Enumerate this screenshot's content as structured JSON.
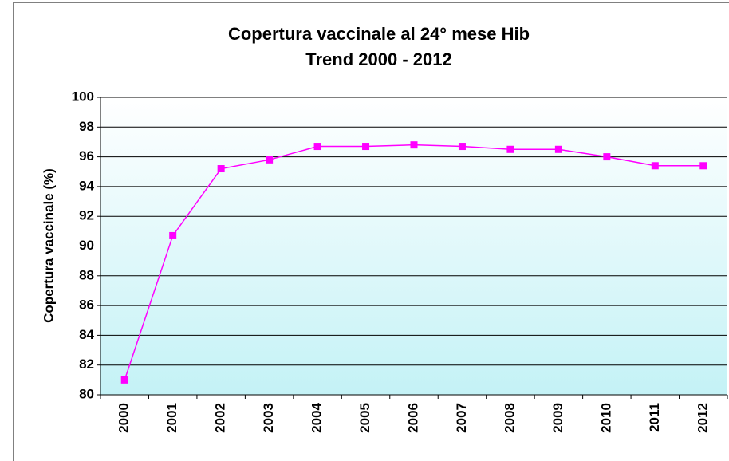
{
  "chart_data": {
    "type": "line",
    "title": "Copertura vaccinale al 24° mese Hib",
    "subtitle": "Trend 2000 - 2012",
    "y_label": "Copertura vaccinale (%)",
    "categories": [
      "2000",
      "2001",
      "2002",
      "2003",
      "2004",
      "2005",
      "2006",
      "2007",
      "2008",
      "2009",
      "2010",
      "2011",
      "2012"
    ],
    "series": [
      {
        "color": "#ff00ff",
        "values": [
          81.0,
          90.7,
          95.2,
          95.8,
          96.7,
          96.7,
          96.8,
          96.7,
          96.5,
          96.5,
          96.0,
          95.4,
          95.4
        ]
      }
    ],
    "ylim": [
      80,
      100
    ],
    "yticks": [
      80,
      82,
      84,
      86,
      88,
      90,
      92,
      94,
      96,
      98,
      100
    ],
    "grid": true
  }
}
